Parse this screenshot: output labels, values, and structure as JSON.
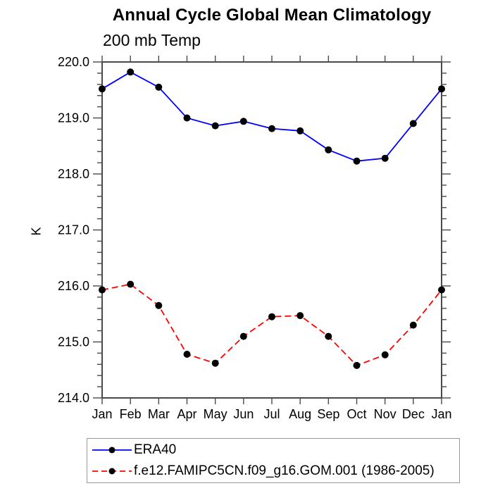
{
  "page": {
    "background": "#ffffff"
  },
  "chart_data": {
    "type": "line",
    "title": "Annual Cycle Global Mean Climatology",
    "subtitle": "200 mb Temp",
    "ylabel": "K",
    "xlabel": "",
    "categories": [
      "Jan",
      "Feb",
      "Mar",
      "Apr",
      "May",
      "Jun",
      "Jul",
      "Aug",
      "Sep",
      "Oct",
      "Nov",
      "Dec",
      "Jan"
    ],
    "ylim": [
      214.0,
      220.0
    ],
    "ytick_interval": 1.0,
    "yminor_interval": 0.2,
    "ytick_labels": [
      "214.0",
      "215.0",
      "216.0",
      "217.0",
      "218.0",
      "219.0",
      "220.0"
    ],
    "grid": false,
    "legend_position": "bottom-left-box",
    "axis_color": "#4a4a4a",
    "series": [
      {
        "name": "ERA40",
        "color": "#0000ff",
        "line_style": "solid",
        "marker": "filled-circle",
        "marker_color": "#000000",
        "values": [
          219.52,
          219.82,
          219.55,
          219.0,
          218.86,
          218.94,
          218.81,
          218.77,
          218.43,
          218.23,
          218.28,
          218.9,
          219.52
        ]
      },
      {
        "name": "f.e12.FAMIPC5CN.f09_g16.GOM.001 (1986-2005)",
        "color": "#ff0000",
        "line_style": "dashed",
        "marker": "filled-circle",
        "marker_color": "#000000",
        "values": [
          215.93,
          216.03,
          215.65,
          214.78,
          214.62,
          215.1,
          215.45,
          215.47,
          215.1,
          214.58,
          214.77,
          215.3,
          215.93
        ]
      }
    ]
  }
}
